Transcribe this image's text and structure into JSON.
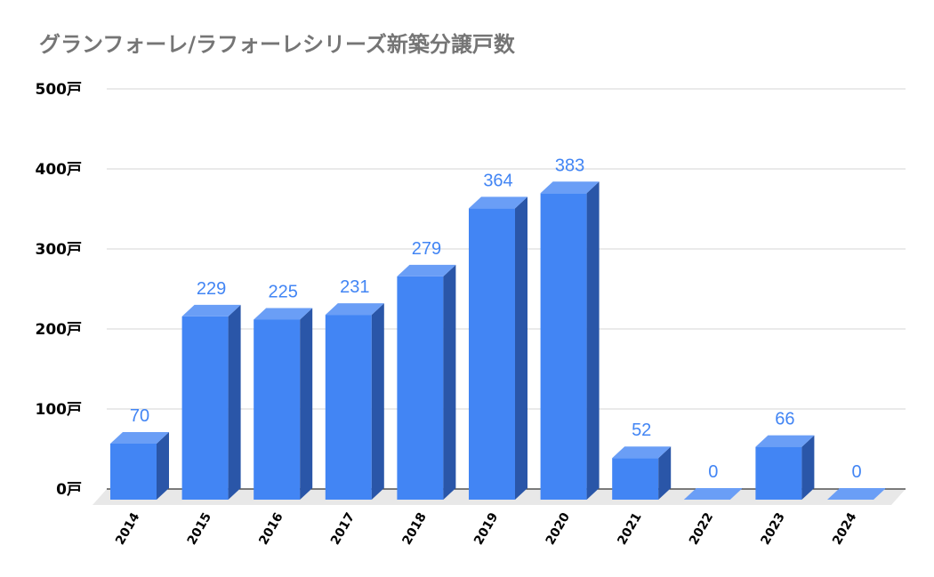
{
  "chart_data": {
    "type": "bar",
    "title": "グランフォーレ/ラフォーレシリーズ新築分譲戸数",
    "xlabel": "",
    "ylabel": "",
    "categories": [
      "2014",
      "2015",
      "2016",
      "2017",
      "2018",
      "2019",
      "2020",
      "2021",
      "2022",
      "2023",
      "2024"
    ],
    "values": [
      70,
      229,
      225,
      231,
      279,
      364,
      383,
      52,
      0,
      66,
      0
    ],
    "data_labels": [
      "70",
      "229",
      "225",
      "231",
      "279",
      "364",
      "383",
      "52",
      "0",
      "66",
      "0"
    ],
    "ylim": [
      0,
      500
    ],
    "yticks": [
      0,
      100,
      200,
      300,
      400,
      500
    ],
    "ytick_labels": [
      "0戸",
      "100戸",
      "200戸",
      "300戸",
      "400戸",
      "500戸"
    ],
    "grid": true,
    "legend": "none",
    "style": "3d-bar",
    "colors": {
      "bar_front": "#4285f4",
      "bar_top": "#6a9ef6",
      "bar_side": "#2a56a8",
      "data_label": "#4285f4",
      "title": "#757575",
      "grid": "#d6d6d6",
      "floor": "#e8e8e8"
    }
  }
}
